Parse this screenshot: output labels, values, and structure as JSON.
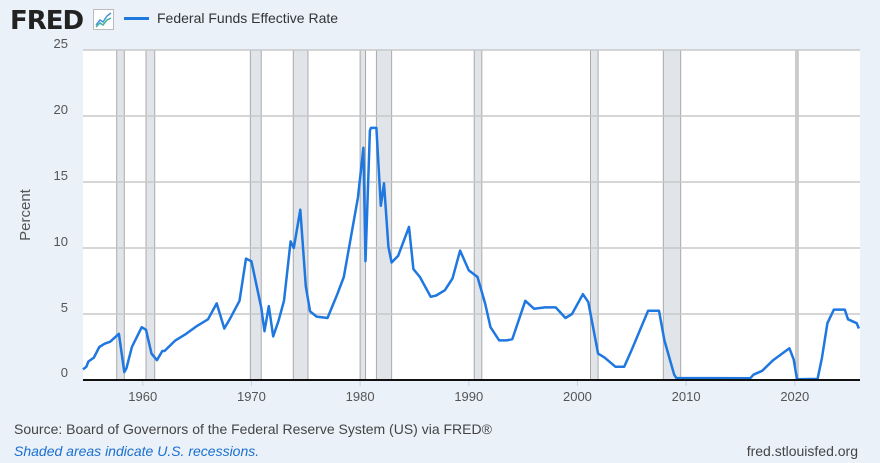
{
  "header": {
    "logo": "FRED",
    "legend_label": "Federal Funds Effective Rate",
    "series_color": "#1f77e0"
  },
  "footer": {
    "source": "Source: Board of Governors of the Federal Reserve System (US) via FRED®",
    "note": "Shaded areas indicate U.S. recessions.",
    "site": "fred.stlouisfed.org"
  },
  "chart_data": {
    "type": "line",
    "title": "",
    "ylabel": "Percent",
    "xlabel": "",
    "xlim": [
      1954.5,
      2026.0
    ],
    "ylim": [
      0,
      25
    ],
    "yticks": [
      0,
      5,
      10,
      15,
      20,
      25
    ],
    "xticks": [
      1960,
      1970,
      1980,
      1990,
      2000,
      2010,
      2020
    ],
    "grid": "horizontal",
    "legend_placement": "top-left",
    "recessions": [
      [
        1957.6,
        1958.3
      ],
      [
        1960.3,
        1961.1
      ],
      [
        1969.9,
        1970.9
      ],
      [
        1973.85,
        1975.2
      ],
      [
        1980.0,
        1980.5
      ],
      [
        1981.5,
        1982.9
      ],
      [
        1990.5,
        1991.2
      ],
      [
        2001.2,
        2001.9
      ],
      [
        2007.9,
        2009.5
      ],
      [
        2020.1,
        2020.3
      ]
    ],
    "series": [
      {
        "name": "Federal Funds Effective Rate",
        "points": [
          [
            1954.5,
            0.8
          ],
          [
            1954.8,
            1.0
          ],
          [
            1955,
            1.4
          ],
          [
            1955.5,
            1.7
          ],
          [
            1956,
            2.5
          ],
          [
            1956.5,
            2.75
          ],
          [
            1957,
            2.9
          ],
          [
            1957.8,
            3.5
          ],
          [
            1958.3,
            0.6
          ],
          [
            1958.5,
            0.9
          ],
          [
            1959,
            2.5
          ],
          [
            1959.9,
            4.0
          ],
          [
            1960.3,
            3.8
          ],
          [
            1960.8,
            2.0
          ],
          [
            1961.3,
            1.5
          ],
          [
            1961.8,
            2.2
          ],
          [
            1962,
            2.2
          ],
          [
            1963,
            3.0
          ],
          [
            1964,
            3.5
          ],
          [
            1965,
            4.1
          ],
          [
            1966,
            4.6
          ],
          [
            1966.8,
            5.8
          ],
          [
            1967.5,
            3.9
          ],
          [
            1968,
            4.6
          ],
          [
            1968.9,
            6.0
          ],
          [
            1969.5,
            9.2
          ],
          [
            1970,
            9.0
          ],
          [
            1970.9,
            5.5
          ],
          [
            1971.2,
            3.7
          ],
          [
            1971.6,
            5.6
          ],
          [
            1972,
            3.3
          ],
          [
            1972.5,
            4.5
          ],
          [
            1973,
            6.0
          ],
          [
            1973.6,
            10.5
          ],
          [
            1973.9,
            10.0
          ],
          [
            1974.5,
            12.9
          ],
          [
            1975,
            7.1
          ],
          [
            1975.4,
            5.2
          ],
          [
            1976,
            4.8
          ],
          [
            1977,
            4.7
          ],
          [
            1977.9,
            6.5
          ],
          [
            1978.5,
            7.8
          ],
          [
            1979,
            10.1
          ],
          [
            1979.8,
            13.8
          ],
          [
            1980.3,
            17.6
          ],
          [
            1980.5,
            9.0
          ],
          [
            1980.9,
            18.9
          ],
          [
            1981.0,
            19.1
          ],
          [
            1981.5,
            19.1
          ],
          [
            1981.9,
            13.2
          ],
          [
            1982.2,
            14.9
          ],
          [
            1982.6,
            10.1
          ],
          [
            1982.9,
            8.9
          ],
          [
            1983.5,
            9.4
          ],
          [
            1984.5,
            11.6
          ],
          [
            1984.9,
            8.4
          ],
          [
            1985.5,
            7.8
          ],
          [
            1986.5,
            6.3
          ],
          [
            1987,
            6.4
          ],
          [
            1987.8,
            6.8
          ],
          [
            1988.5,
            7.7
          ],
          [
            1989.2,
            9.8
          ],
          [
            1990,
            8.3
          ],
          [
            1990.8,
            7.8
          ],
          [
            1991.5,
            5.8
          ],
          [
            1992,
            4.0
          ],
          [
            1992.8,
            3.0
          ],
          [
            1993.5,
            3.0
          ],
          [
            1994,
            3.1
          ],
          [
            1995.2,
            6.0
          ],
          [
            1996,
            5.4
          ],
          [
            1997,
            5.5
          ],
          [
            1998,
            5.5
          ],
          [
            1998.9,
            4.7
          ],
          [
            1999.5,
            5.0
          ],
          [
            2000.5,
            6.5
          ],
          [
            2001,
            5.9
          ],
          [
            2001.9,
            2.0
          ],
          [
            2002.5,
            1.7
          ],
          [
            2003.5,
            1.0
          ],
          [
            2004.3,
            1.0
          ],
          [
            2005,
            2.3
          ],
          [
            2006.5,
            5.25
          ],
          [
            2007.5,
            5.25
          ],
          [
            2008,
            3.0
          ],
          [
            2008.9,
            0.4
          ],
          [
            2009.1,
            0.15
          ],
          [
            2015.9,
            0.13
          ],
          [
            2016.2,
            0.4
          ],
          [
            2017,
            0.7
          ],
          [
            2018,
            1.5
          ],
          [
            2019.5,
            2.4
          ],
          [
            2019.9,
            1.55
          ],
          [
            2020.2,
            0.05
          ],
          [
            2022.1,
            0.08
          ],
          [
            2022.5,
            1.7
          ],
          [
            2023,
            4.3
          ],
          [
            2023.6,
            5.33
          ],
          [
            2024.6,
            5.33
          ],
          [
            2024.9,
            4.6
          ],
          [
            2025.7,
            4.3
          ],
          [
            2025.9,
            3.9
          ]
        ]
      }
    ]
  }
}
